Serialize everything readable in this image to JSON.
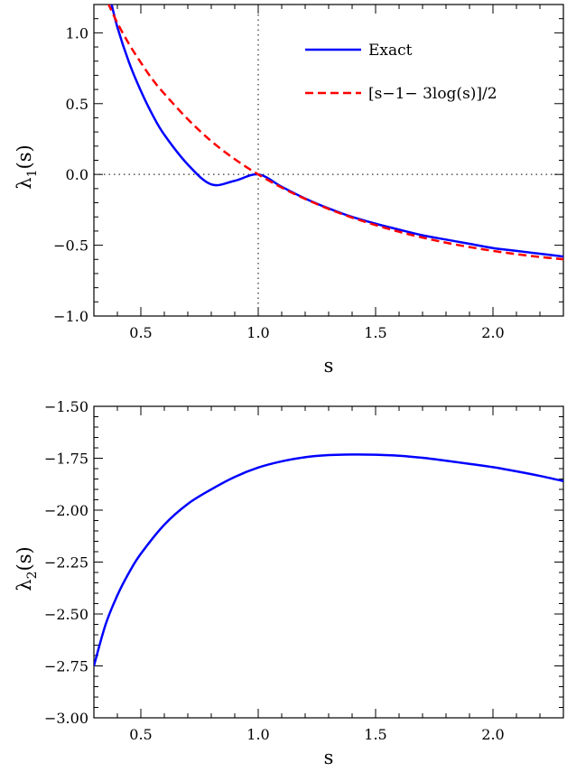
{
  "chart_data": [
    {
      "type": "line",
      "xlabel": "s",
      "ylabel": "λ",
      "ylabel_sub": "1",
      "ylabel_tail": "(s)",
      "xlim": [
        0.3,
        2.3
      ],
      "ylim": [
        -1.0,
        1.2
      ],
      "xticks": [
        0.5,
        1.0,
        1.5,
        2.0
      ],
      "xtick_labels": [
        "0.5",
        "1.0",
        "1.5",
        "2.0"
      ],
      "yticks": [
        -1.0,
        -0.5,
        0.0,
        0.5,
        1.0
      ],
      "ytick_labels": [
        "−1.0",
        "−0.5",
        "0.0",
        "0.5",
        "1.0"
      ],
      "reference_lines": [
        {
          "orientation": "horizontal",
          "value": 0.0,
          "style": "dotted"
        },
        {
          "orientation": "vertical",
          "value": 1.0,
          "style": "dotted"
        }
      ],
      "legend_position": "top-right",
      "series": [
        {
          "name": "Exact",
          "color": "#0000ff",
          "style": "solid",
          "x": [
            0.37,
            0.4,
            0.45,
            0.5,
            0.55,
            0.6,
            0.7,
            0.8,
            0.9,
            1.0,
            1.1,
            1.2,
            1.3,
            1.4,
            1.5,
            1.6,
            1.7,
            1.8,
            1.9,
            2.0,
            2.1,
            2.2,
            2.3
          ],
          "y": [
            1.24,
            1.04,
            0.79,
            0.59,
            0.42,
            0.28,
            0.07,
            -0.07,
            -0.045,
            0.0,
            -0.087,
            -0.17,
            -0.24,
            -0.3,
            -0.348,
            -0.39,
            -0.43,
            -0.46,
            -0.49,
            -0.52,
            -0.54,
            -0.56,
            -0.58
          ]
        },
        {
          "name": "[s−1− 3log(s)]/2",
          "color": "#ff0000",
          "style": "dashed",
          "x": [
            0.36,
            0.4,
            0.45,
            0.5,
            0.55,
            0.6,
            0.7,
            0.8,
            0.9,
            1.0,
            1.1,
            1.2,
            1.3,
            1.4,
            1.5,
            1.6,
            1.7,
            1.8,
            1.9,
            2.0,
            2.1,
            2.2,
            2.3
          ],
          "y": [
            1.21,
            1.07,
            0.92,
            0.79,
            0.67,
            0.57,
            0.39,
            0.235,
            0.108,
            0.0,
            -0.093,
            -0.173,
            -0.244,
            -0.305,
            -0.358,
            -0.405,
            -0.446,
            -0.482,
            -0.513,
            -0.54,
            -0.563,
            -0.583,
            -0.599
          ]
        }
      ]
    },
    {
      "type": "line",
      "xlabel": "s",
      "ylabel": "λ",
      "ylabel_sub": "2",
      "ylabel_tail": "(s)",
      "xlim": [
        0.3,
        2.3
      ],
      "ylim": [
        -3.0,
        -1.5
      ],
      "xticks": [
        0.5,
        1.0,
        1.5,
        2.0
      ],
      "xtick_labels": [
        "0.5",
        "1.0",
        "1.5",
        "2.0"
      ],
      "yticks": [
        -3.0,
        -2.75,
        -2.5,
        -2.25,
        -2.0,
        -1.75,
        -1.5
      ],
      "ytick_labels": [
        "−3.00",
        "−2.75",
        "−2.50",
        "−2.25",
        "−2.00",
        "−1.75",
        "−1.50"
      ],
      "series": [
        {
          "color": "#0000ff",
          "style": "solid",
          "x": [
            0.3,
            0.35,
            0.4,
            0.45,
            0.5,
            0.6,
            0.7,
            0.8,
            0.9,
            1.0,
            1.1,
            1.2,
            1.3,
            1.4,
            1.5,
            1.6,
            1.7,
            1.8,
            1.9,
            2.0,
            2.1,
            2.2,
            2.3
          ],
          "y": [
            -2.75,
            -2.55,
            -2.41,
            -2.3,
            -2.21,
            -2.07,
            -1.97,
            -1.9,
            -1.84,
            -1.795,
            -1.765,
            -1.745,
            -1.735,
            -1.732,
            -1.733,
            -1.738,
            -1.748,
            -1.762,
            -1.777,
            -1.793,
            -1.813,
            -1.835,
            -1.86
          ]
        }
      ]
    }
  ]
}
